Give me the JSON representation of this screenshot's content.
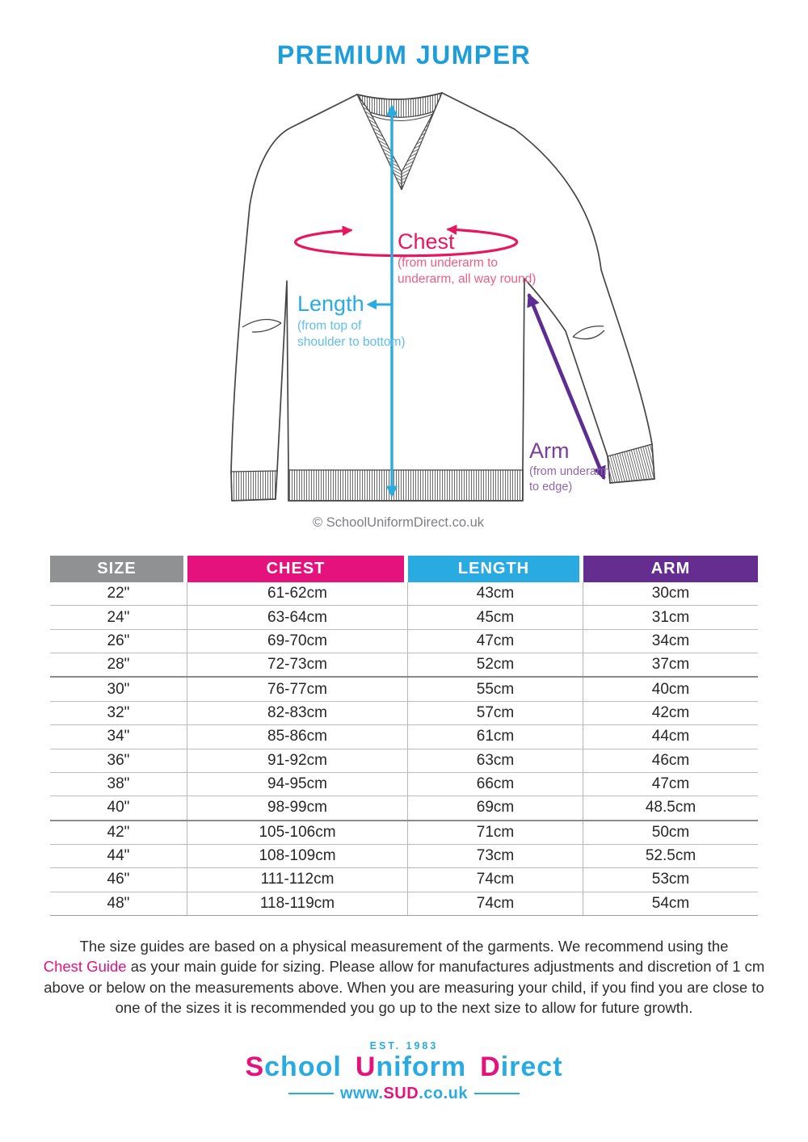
{
  "page": {
    "title": "PREMIUM JUMPER"
  },
  "diagram": {
    "chest": {
      "label": "Chest",
      "desc1": "(from underarm to",
      "desc2": "underarm, all way round)"
    },
    "length": {
      "label": "Length",
      "desc1": "(from top of",
      "desc2": "shoulder to bottom)"
    },
    "arm": {
      "label": "Arm",
      "desc1": "(from underarm",
      "desc2": "to edge)"
    },
    "copyright": "© SchoolUniformDirect.co.uk"
  },
  "table": {
    "columns": [
      {
        "key": "size",
        "label": "SIZE",
        "color": "#8f9193"
      },
      {
        "key": "chest",
        "label": "CHEST",
        "color": "#e5127d"
      },
      {
        "key": "length",
        "label": "LENGTH",
        "color": "#29abe2"
      },
      {
        "key": "arm",
        "label": "ARM",
        "color": "#662d91"
      }
    ],
    "group_start_rows": [
      4,
      10
    ],
    "rows": [
      {
        "size": "22\"",
        "chest": "61-62cm",
        "length": "43cm",
        "arm": "30cm"
      },
      {
        "size": "24\"",
        "chest": "63-64cm",
        "length": "45cm",
        "arm": "31cm"
      },
      {
        "size": "26\"",
        "chest": "69-70cm",
        "length": "47cm",
        "arm": "34cm"
      },
      {
        "size": "28\"",
        "chest": "72-73cm",
        "length": "52cm",
        "arm": "37cm"
      },
      {
        "size": "30\"",
        "chest": "76-77cm",
        "length": "55cm",
        "arm": "40cm"
      },
      {
        "size": "32\"",
        "chest": "82-83cm",
        "length": "57cm",
        "arm": "42cm"
      },
      {
        "size": "34\"",
        "chest": "85-86cm",
        "length": "61cm",
        "arm": "44cm"
      },
      {
        "size": "36\"",
        "chest": "91-92cm",
        "length": "63cm",
        "arm": "46cm"
      },
      {
        "size": "38\"",
        "chest": "94-95cm",
        "length": "66cm",
        "arm": "47cm"
      },
      {
        "size": "40\"",
        "chest": "98-99cm",
        "length": "69cm",
        "arm": "48.5cm"
      },
      {
        "size": "42\"",
        "chest": "105-106cm",
        "length": "71cm",
        "arm": "50cm"
      },
      {
        "size": "44\"",
        "chest": "108-109cm",
        "length": "73cm",
        "arm": "52.5cm"
      },
      {
        "size": "46\"",
        "chest": "111-112cm",
        "length": "74cm",
        "arm": "53cm"
      },
      {
        "size": "48\"",
        "chest": "118-119cm",
        "length": "74cm",
        "arm": "54cm"
      }
    ]
  },
  "note": {
    "line1": "The size guides are based on a physical measurement of the garments. We recommend using the",
    "line2_highlight": "Chest Guide",
    "line2_rest": " as your main guide for sizing. Please allow for manufactures adjustments and discretion of 1 cm",
    "line3": "above or below on the measurements above. When you are measuring your child, if you find you are close to",
    "line4": "one of the sizes it is recommended you go up to the next size to allow for future growth."
  },
  "logo": {
    "est": "EST. 1983",
    "words": [
      {
        "first": "S",
        "rest": "chool"
      },
      {
        "first": "U",
        "rest": "niform"
      },
      {
        "first": "D",
        "rest": "irect"
      }
    ],
    "url": {
      "prefix": "www.",
      "brand": "SUD",
      "suffix": ".co.uk"
    }
  },
  "colors": {
    "title_blue": "#1d9edb",
    "blue": "#29abe2",
    "pink": "#e5127d",
    "chest_pink": "#e8175d",
    "purple": "#662d91",
    "arm_purple": "#7c3f98",
    "header_gray": "#8f9193"
  }
}
